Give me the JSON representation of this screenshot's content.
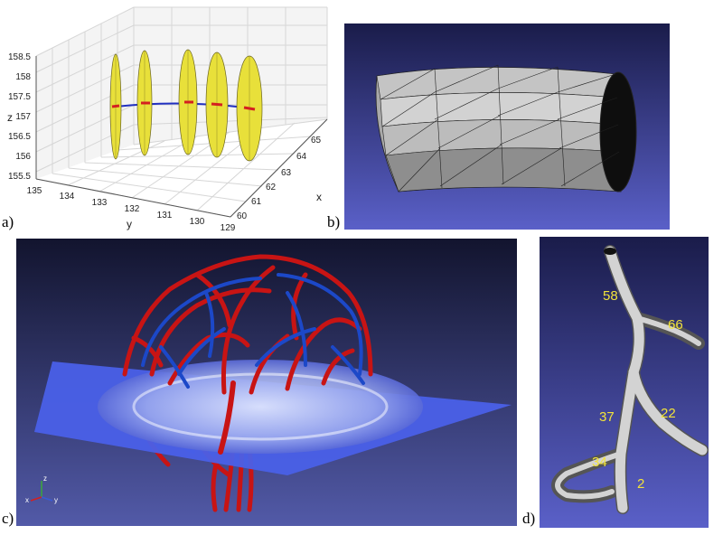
{
  "panels": {
    "a": {
      "label": "a)",
      "z_axis_label": "z",
      "y_axis_label": "y",
      "x_axis_label": "x",
      "z_ticks": [
        "158.5",
        "158",
        "157.5",
        "157",
        "156.5",
        "156",
        "155.5"
      ],
      "y_ticks": [
        "135",
        "134",
        "133",
        "132",
        "131",
        "130",
        "129"
      ],
      "x_ticks": [
        "60",
        "61",
        "62",
        "63",
        "64",
        "65"
      ]
    },
    "b": {
      "label": "b)"
    },
    "c": {
      "label": "c)",
      "triad": {
        "z": "z",
        "x": "x",
        "y": "y"
      }
    },
    "d": {
      "label": "d)",
      "segment_labels": [
        "58",
        "66",
        "37",
        "22",
        "34",
        "2"
      ]
    }
  },
  "colors": {
    "disk_fill": "#e8e03a",
    "centerline_red": "#d42020",
    "centerline_blue": "#2030c0",
    "vessel_red": "#c81414",
    "vessel_blue": "#1c48c8",
    "viewer_bg_top": "#1a1c4a",
    "viewer_bg_bottom": "#5a60c8",
    "segment_label": "#f2e33a"
  }
}
